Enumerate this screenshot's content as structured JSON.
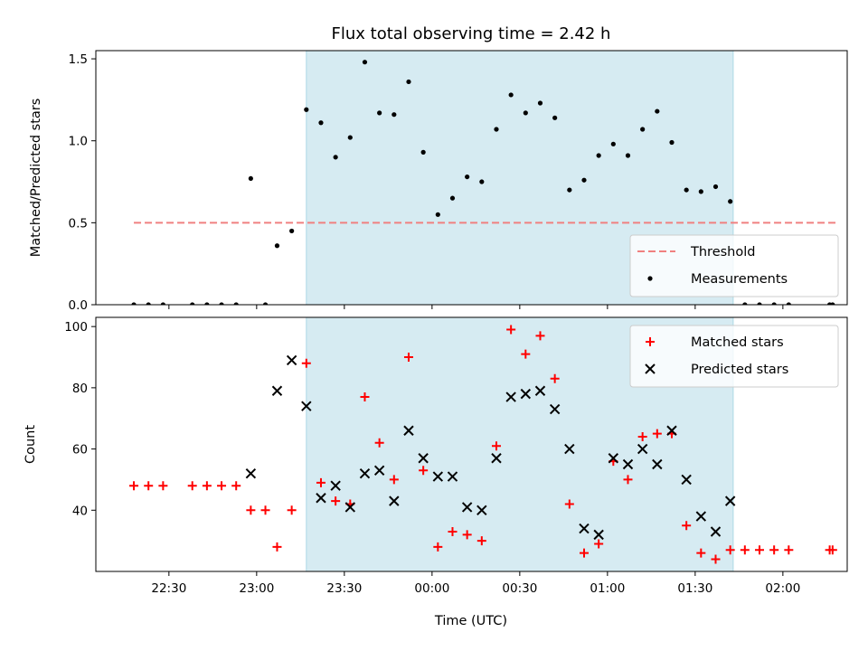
{
  "title": "Flux total observing time = 2.42 h",
  "xlabel": "Time (UTC)",
  "colors": {
    "highlight": "#add8e6",
    "threshold": "#f08080",
    "matched": "#ff0000",
    "predicted": "#000000",
    "measurement": "#000000"
  },
  "x_ticks": [
    "22:30",
    "23:00",
    "23:30",
    "00:00",
    "00:30",
    "01:00",
    "01:30",
    "02:00"
  ],
  "chart_data": [
    {
      "type": "scatter",
      "ylabel": "Matched/Predicted stars",
      "ylim": [
        0,
        1.55
      ],
      "yticks": [
        "0.0",
        "0.5",
        "1.0",
        "1.5"
      ],
      "highlight_span": [
        "23:17",
        "01:43"
      ],
      "threshold": {
        "name": "Threshold",
        "value": 0.5,
        "x_range": [
          "22:18",
          "02:18"
        ]
      },
      "legend": [
        "Threshold",
        "Measurements"
      ],
      "legend_position": "lower-right",
      "series": [
        {
          "name": "Measurements",
          "points": [
            [
              "22:18",
              0
            ],
            [
              "22:23",
              0
            ],
            [
              "22:28",
              0
            ],
            [
              "22:38",
              0
            ],
            [
              "22:43",
              0
            ],
            [
              "22:48",
              0
            ],
            [
              "22:53",
              0
            ],
            [
              "22:58",
              0.77
            ],
            [
              "23:03",
              0
            ],
            [
              "23:07",
              0.36
            ],
            [
              "23:12",
              0.45
            ],
            [
              "23:17",
              1.19
            ],
            [
              "23:22",
              1.11
            ],
            [
              "23:27",
              0.9
            ],
            [
              "23:32",
              1.02
            ],
            [
              "23:37",
              1.48
            ],
            [
              "23:42",
              1.17
            ],
            [
              "23:47",
              1.16
            ],
            [
              "23:52",
              1.36
            ],
            [
              "23:57",
              0.93
            ],
            [
              "00:02",
              0.55
            ],
            [
              "00:07",
              0.65
            ],
            [
              "00:12",
              0.78
            ],
            [
              "00:17",
              0.75
            ],
            [
              "00:22",
              1.07
            ],
            [
              "00:27",
              1.28
            ],
            [
              "00:32",
              1.17
            ],
            [
              "00:37",
              1.23
            ],
            [
              "00:42",
              1.14
            ],
            [
              "00:47",
              0.7
            ],
            [
              "00:52",
              0.76
            ],
            [
              "00:57",
              0.91
            ],
            [
              "01:02",
              0.98
            ],
            [
              "01:07",
              0.91
            ],
            [
              "01:12",
              1.07
            ],
            [
              "01:17",
              1.18
            ],
            [
              "01:22",
              0.99
            ],
            [
              "01:27",
              0.7
            ],
            [
              "01:32",
              0.69
            ],
            [
              "01:37",
              0.72
            ],
            [
              "01:42",
              0.63
            ],
            [
              "01:47",
              0
            ],
            [
              "01:52",
              0
            ],
            [
              "01:57",
              0
            ],
            [
              "02:02",
              0
            ],
            [
              "02:16",
              0
            ],
            [
              "02:17",
              0
            ]
          ]
        }
      ]
    },
    {
      "type": "scatter",
      "ylabel": "Count",
      "ylim": [
        20,
        103
      ],
      "yticks": [
        "40",
        "60",
        "80",
        "100"
      ],
      "highlight_span": [
        "23:17",
        "01:43"
      ],
      "legend": [
        "Matched stars",
        "Predicted stars"
      ],
      "legend_position": "upper-right",
      "series": [
        {
          "name": "Matched stars",
          "marker": "plus",
          "points": [
            [
              "22:18",
              48
            ],
            [
              "22:23",
              48
            ],
            [
              "22:28",
              48
            ],
            [
              "22:38",
              48
            ],
            [
              "22:43",
              48
            ],
            [
              "22:48",
              48
            ],
            [
              "22:53",
              48
            ],
            [
              "22:58",
              40
            ],
            [
              "23:03",
              40
            ],
            [
              "23:07",
              28
            ],
            [
              "23:12",
              40
            ],
            [
              "23:17",
              88
            ],
            [
              "23:22",
              49
            ],
            [
              "23:27",
              43
            ],
            [
              "23:32",
              42
            ],
            [
              "23:37",
              77
            ],
            [
              "23:42",
              62
            ],
            [
              "23:47",
              50
            ],
            [
              "23:52",
              90
            ],
            [
              "23:57",
              53
            ],
            [
              "00:02",
              28
            ],
            [
              "00:07",
              33
            ],
            [
              "00:12",
              32
            ],
            [
              "00:17",
              30
            ],
            [
              "00:22",
              61
            ],
            [
              "00:27",
              99
            ],
            [
              "00:32",
              91
            ],
            [
              "00:37",
              97
            ],
            [
              "00:42",
              83
            ],
            [
              "00:47",
              42
            ],
            [
              "00:52",
              26
            ],
            [
              "00:57",
              29
            ],
            [
              "01:02",
              56
            ],
            [
              "01:07",
              50
            ],
            [
              "01:12",
              64
            ],
            [
              "01:17",
              65
            ],
            [
              "01:22",
              65
            ],
            [
              "01:27",
              35
            ],
            [
              "01:32",
              26
            ],
            [
              "01:37",
              24
            ],
            [
              "01:42",
              27
            ],
            [
              "01:47",
              27
            ],
            [
              "01:52",
              27
            ],
            [
              "01:57",
              27
            ],
            [
              "02:02",
              27
            ],
            [
              "02:16",
              27
            ],
            [
              "02:17",
              27
            ]
          ]
        },
        {
          "name": "Predicted stars",
          "marker": "x",
          "points": [
            [
              "22:58",
              52
            ],
            [
              "23:07",
              79
            ],
            [
              "23:12",
              89
            ],
            [
              "23:17",
              74
            ],
            [
              "23:22",
              44
            ],
            [
              "23:27",
              48
            ],
            [
              "23:32",
              41
            ],
            [
              "23:37",
              52
            ],
            [
              "23:42",
              53
            ],
            [
              "23:47",
              43
            ],
            [
              "23:52",
              66
            ],
            [
              "23:57",
              57
            ],
            [
              "00:02",
              51
            ],
            [
              "00:07",
              51
            ],
            [
              "00:12",
              41
            ],
            [
              "00:17",
              40
            ],
            [
              "00:22",
              57
            ],
            [
              "00:27",
              77
            ],
            [
              "00:32",
              78
            ],
            [
              "00:37",
              79
            ],
            [
              "00:42",
              73
            ],
            [
              "00:47",
              60
            ],
            [
              "00:52",
              34
            ],
            [
              "00:57",
              32
            ],
            [
              "01:02",
              57
            ],
            [
              "01:07",
              55
            ],
            [
              "01:12",
              60
            ],
            [
              "01:17",
              55
            ],
            [
              "01:22",
              66
            ],
            [
              "01:27",
              50
            ],
            [
              "01:32",
              38
            ],
            [
              "01:37",
              33
            ],
            [
              "01:42",
              43
            ]
          ]
        }
      ]
    }
  ]
}
